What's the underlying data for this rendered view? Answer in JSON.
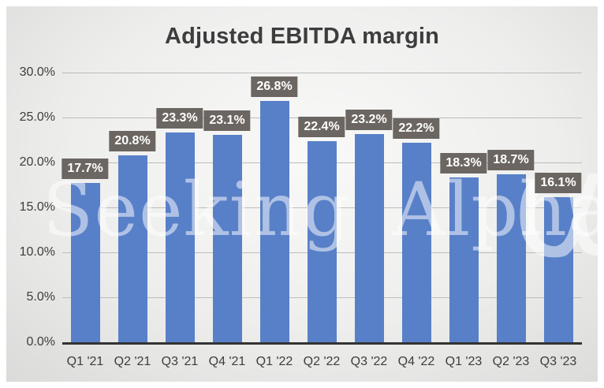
{
  "chart_data": {
    "type": "bar",
    "title": "Adjusted EBITDA margin",
    "categories": [
      "Q1 '21",
      "Q2 '21",
      "Q3 '21",
      "Q4 '21",
      "Q1 '22",
      "Q2 '22",
      "Q3 '22",
      "Q4 '22",
      "Q1 '23",
      "Q2 '23",
      "Q3 '23"
    ],
    "values": [
      17.7,
      20.8,
      23.3,
      23.1,
      26.8,
      22.4,
      23.2,
      22.2,
      18.3,
      18.7,
      16.1
    ],
    "data_labels": [
      "17.7%",
      "20.8%",
      "23.3%",
      "23.1%",
      "26.8%",
      "22.4%",
      "23.2%",
      "22.2%",
      "18.3%",
      "18.7%",
      "16.1%"
    ],
    "xlabel": "",
    "ylabel": "",
    "ylim": [
      0,
      30
    ],
    "ytick_values": [
      0,
      5,
      10,
      15,
      20,
      25,
      30
    ],
    "ytick_labels": [
      "0.0%",
      "5.0%",
      "10.0%",
      "15.0%",
      "20.0%",
      "25.0%",
      "30.0%"
    ],
    "grid": true,
    "legend": "none",
    "colors": {
      "bar": "#5880c8",
      "label_bg": "#6b6661",
      "label_text": "#ffffff",
      "title_text": "#3d3d3d",
      "axis_text": "#3d3d3d",
      "axis_line": "#333333",
      "gridline": "#bcbcbb"
    }
  },
  "watermark": {
    "text": "Seeking Alpha",
    "logo_glyph": "α"
  }
}
